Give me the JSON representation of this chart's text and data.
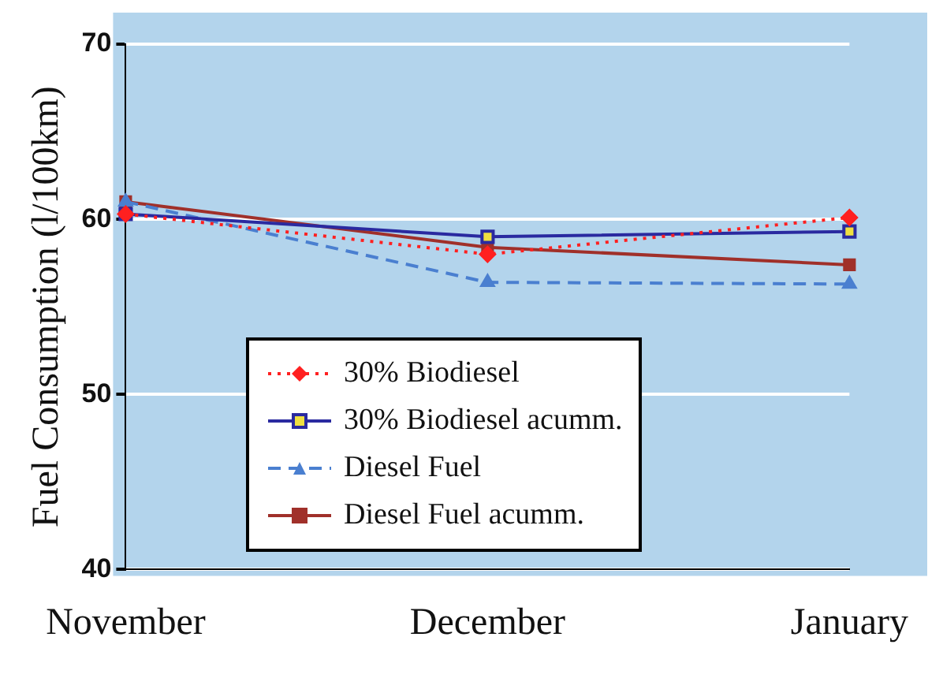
{
  "chart_data": {
    "type": "line",
    "ylabel": "Fuel Consumption (l/100km)",
    "categories": [
      "November",
      "December",
      "January"
    ],
    "series": [
      {
        "name": "30% Biodiesel",
        "color": "#ff2020",
        "values": [
          60.3,
          58.0,
          60.1
        ],
        "marker": "diamond",
        "line_style": "dotted"
      },
      {
        "name": "30% Biodiesel acumm.",
        "color": "#2a2aa0",
        "values": [
          60.3,
          59.0,
          59.3
        ],
        "marker": "square",
        "line_style": "solid"
      },
      {
        "name": "Diesel Fuel",
        "color": "#4a7fd0",
        "values": [
          61.0,
          56.4,
          56.3
        ],
        "marker": "triangle",
        "line_style": "dashed"
      },
      {
        "name": "Diesel Fuel acumm.",
        "color": "#a0302a",
        "values": [
          61.0,
          58.4,
          57.4
        ],
        "marker": "square",
        "line_style": "solid"
      }
    ],
    "ylim": [
      40,
      70
    ],
    "yticks": [
      40,
      50,
      60,
      70
    ],
    "grid": "y",
    "legend": "bottom"
  }
}
